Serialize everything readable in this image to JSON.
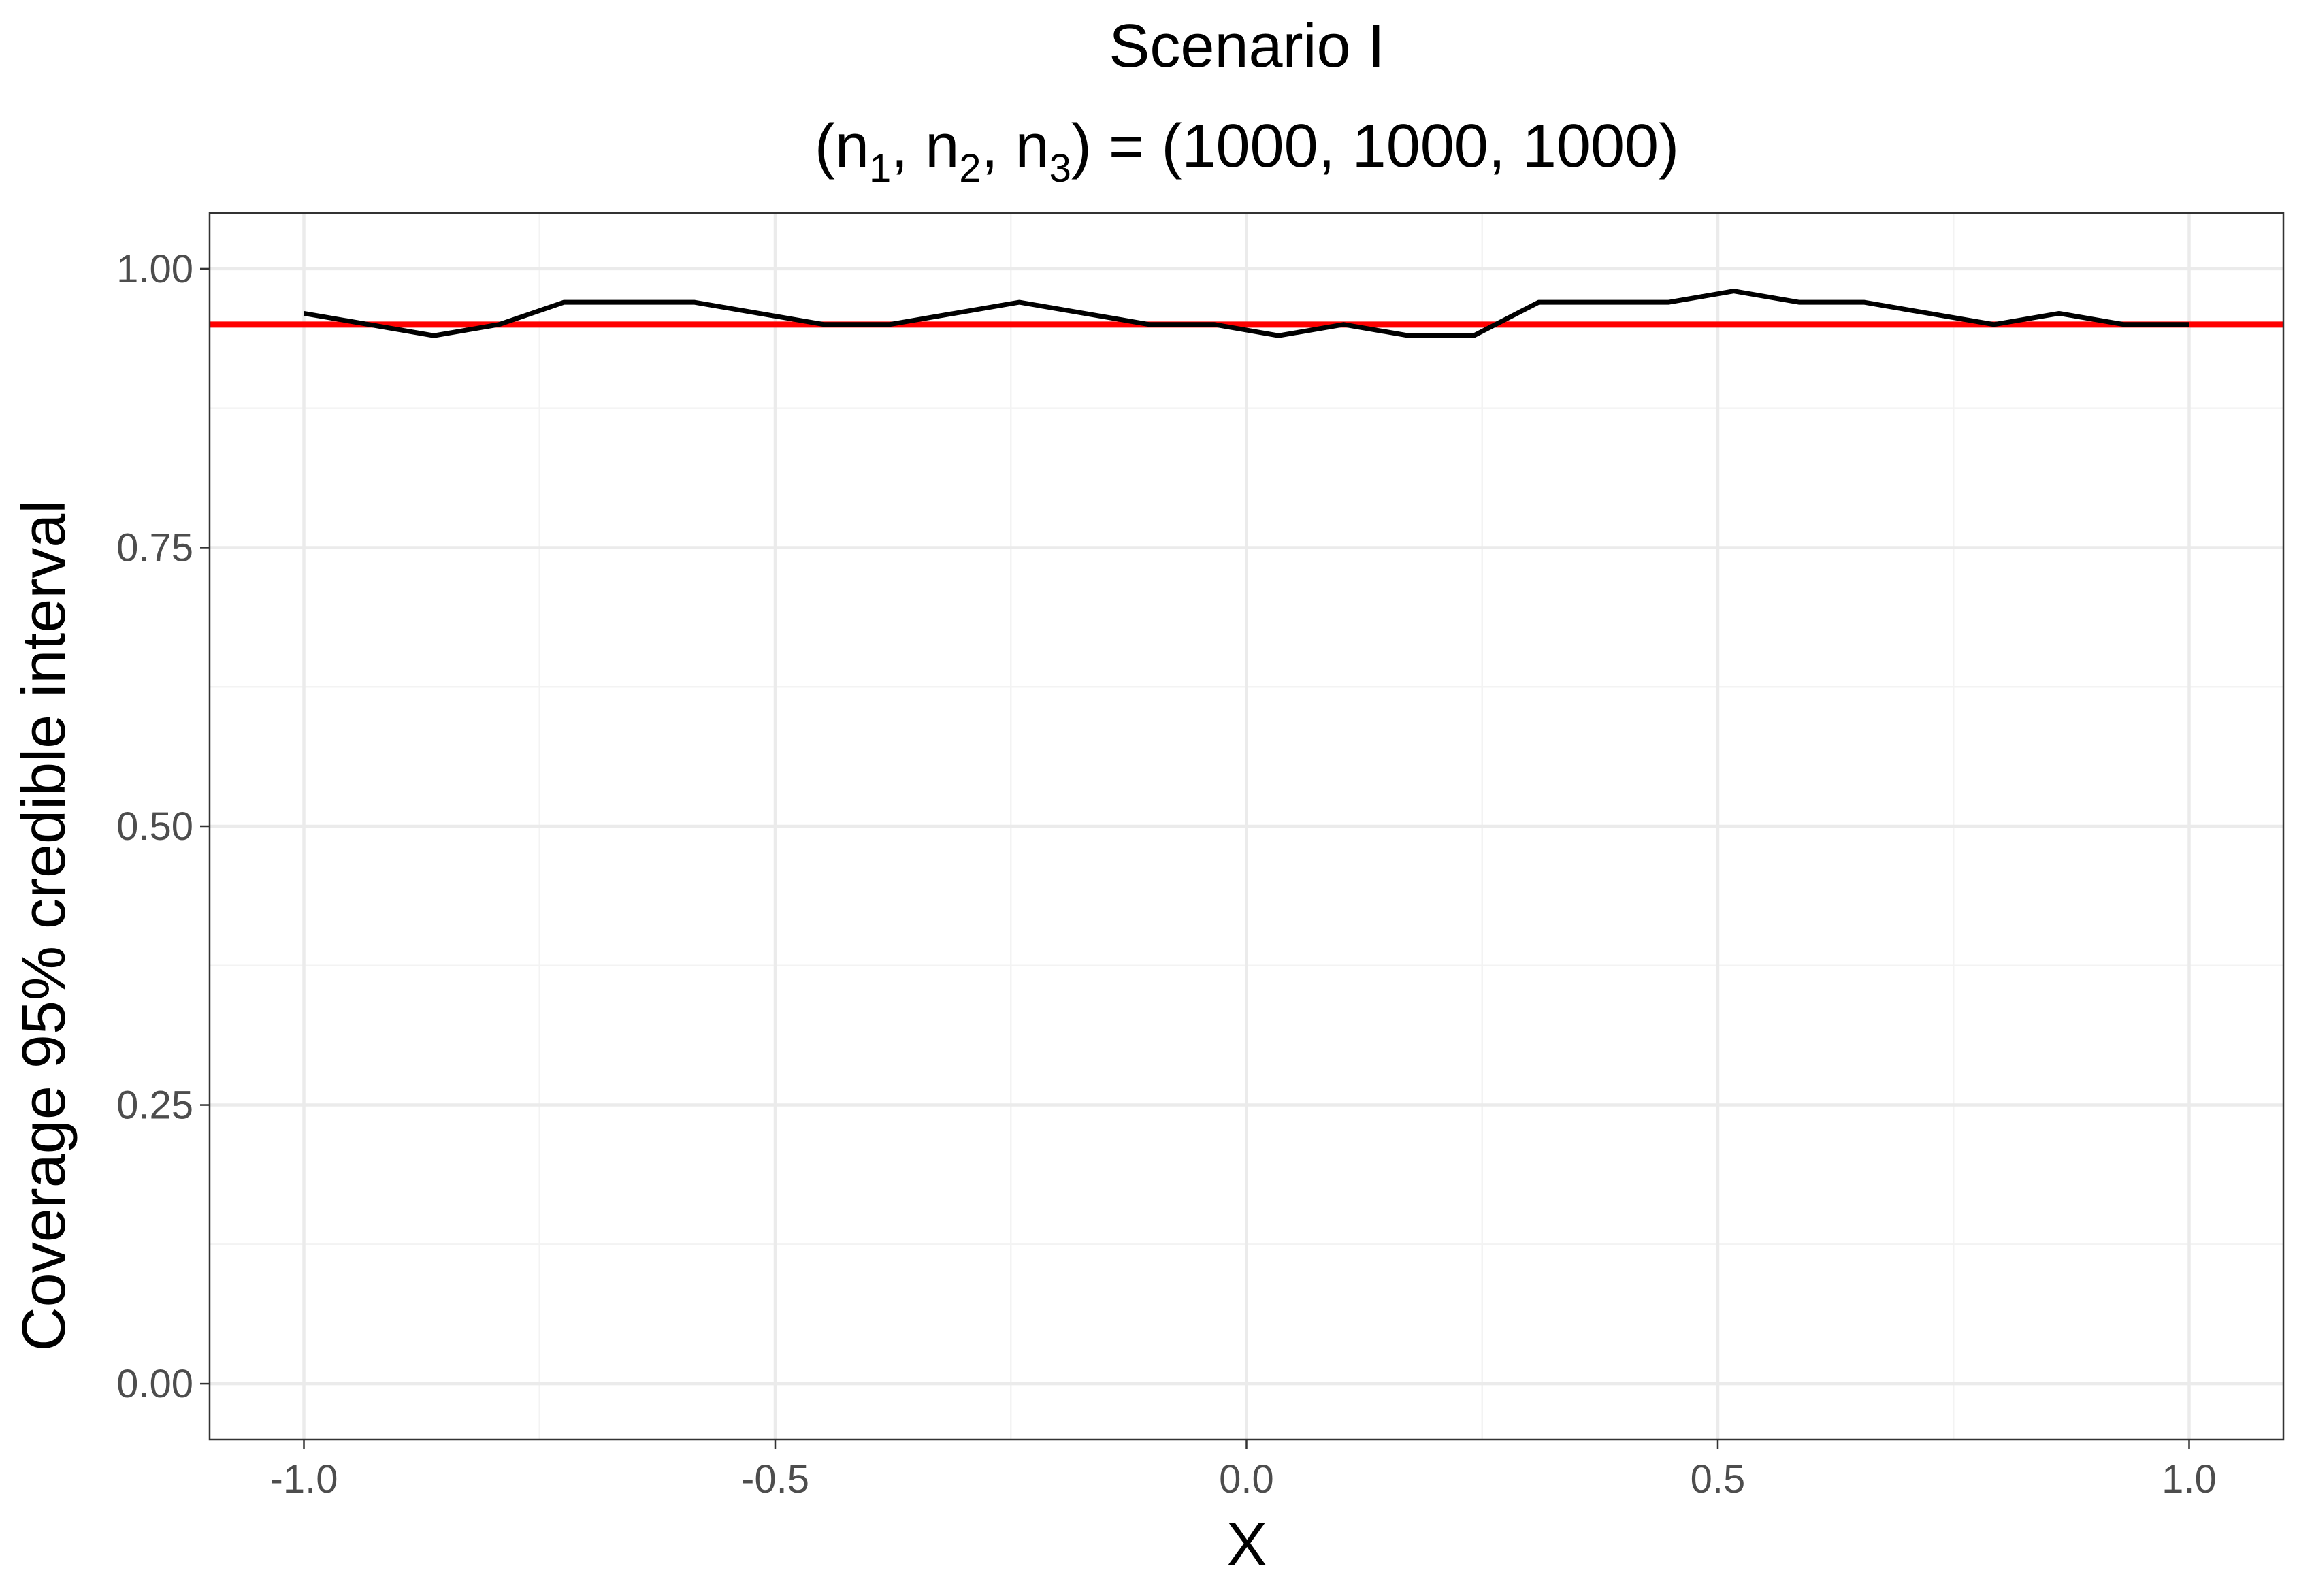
{
  "chart_data": {
    "type": "line",
    "title": "Scenario I",
    "subtitle_parts": {
      "open": "(n",
      "s1": "1",
      "mid1": ", n",
      "s2": "2",
      "mid2": ", n",
      "s3": "3",
      "close": ") = (1000, 1000, 1000)"
    },
    "xlabel": "X",
    "ylabel": "Coverage 95% credible interval",
    "xlim": [
      -1.1,
      1.1
    ],
    "ylim": [
      -0.05,
      1.05
    ],
    "x_ticks": [
      -1.0,
      -0.5,
      0.0,
      0.5,
      1.0
    ],
    "x_tick_labels": [
      "-1.0",
      "-0.5",
      "0.0",
      "0.5",
      "1.0"
    ],
    "y_ticks": [
      0.0,
      0.25,
      0.5,
      0.75,
      1.0
    ],
    "y_tick_labels": [
      "0.00",
      "0.25",
      "0.50",
      "0.75",
      "1.00"
    ],
    "grid": true,
    "series": [
      {
        "color": "#000000",
        "x": [
          -1.0,
          -0.931,
          -0.862,
          -0.793,
          -0.724,
          -0.655,
          -0.586,
          -0.517,
          -0.448,
          -0.379,
          -0.31,
          -0.241,
          -0.172,
          -0.103,
          -0.034,
          0.034,
          0.103,
          0.172,
          0.241,
          0.31,
          0.379,
          0.448,
          0.517,
          0.586,
          0.655,
          0.724,
          0.793,
          0.862,
          0.931,
          1.0
        ],
        "values": [
          0.96,
          0.95,
          0.94,
          0.95,
          0.97,
          0.97,
          0.97,
          0.96,
          0.95,
          0.95,
          0.96,
          0.97,
          0.96,
          0.95,
          0.95,
          0.94,
          0.95,
          0.94,
          0.94,
          0.97,
          0.97,
          0.97,
          0.98,
          0.97,
          0.97,
          0.96,
          0.95,
          0.96,
          0.95,
          0.95
        ]
      }
    ],
    "reference_line": {
      "y": 0.95,
      "color": "#ff0000"
    }
  }
}
